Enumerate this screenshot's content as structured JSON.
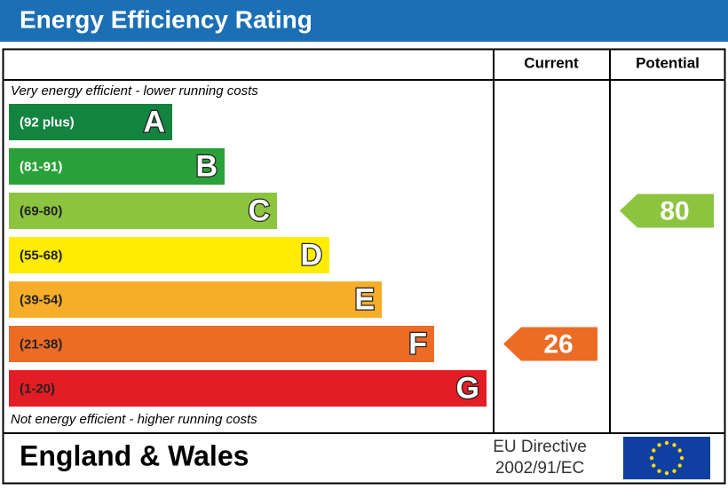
{
  "title": "Energy Efficiency Rating",
  "headers": [
    "Current",
    "Potential"
  ],
  "top_note": "Very energy efficient - lower running costs",
  "bottom_note": "Not energy efficient - higher running costs",
  "bands": [
    {
      "range": "(92 plus)",
      "letter": "A",
      "color": "#13843f"
    },
    {
      "range": "(81-91)",
      "letter": "B",
      "color": "#2aa13a"
    },
    {
      "range": "(69-80)",
      "letter": "C",
      "color": "#8cc43f"
    },
    {
      "range": "(55-68)",
      "letter": "D",
      "color": "#ffec00"
    },
    {
      "range": "(39-54)",
      "letter": "E",
      "color": "#f6ae2a"
    },
    {
      "range": "(21-38)",
      "letter": "F",
      "color": "#ec6b25"
    },
    {
      "range": "(1-20)",
      "letter": "G",
      "color": "#e21d25"
    }
  ],
  "current": {
    "value": 26,
    "color": "#ec6b25"
  },
  "potential": {
    "value": 80,
    "color": "#8cc43f"
  },
  "footer": {
    "region": "England & Wales",
    "directive": [
      "EU Directive",
      "2002/91/EC"
    ]
  }
}
